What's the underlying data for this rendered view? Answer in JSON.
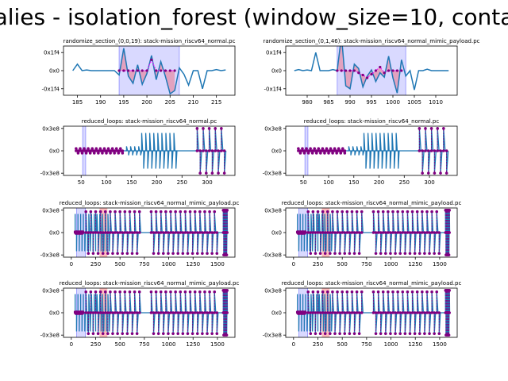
{
  "figure": {
    "suptitle": "alies - isolation_forest (window_size=10, conta"
  },
  "colors": {
    "signal": "#1f77b4",
    "anomaly_points": "#800080",
    "anomaly_line": "#ff00ff",
    "window_fill": "#0000ff",
    "window_fill_alpha": 0.15,
    "diff_fill": "#ff0000",
    "diff_fill_alpha": 0.25
  },
  "chart_data": [
    {
      "type": "line",
      "title": "randomize_section_(0,0,19): stack-mission_riscv64_normal.pc",
      "xlim": [
        182,
        219
      ],
      "ylim": [
        -680,
        680
      ],
      "xticks": [
        185,
        190,
        195,
        200,
        205,
        210,
        215
      ],
      "yticks": [
        {
          "v": 500,
          "label": "0x1f4"
        },
        {
          "v": 0,
          "label": "0x0"
        },
        {
          "v": -500,
          "label": "-0x1f4"
        }
      ],
      "x": [
        184,
        185,
        186,
        187,
        188,
        189,
        190,
        191,
        192,
        193,
        194,
        195,
        196,
        197,
        198,
        199,
        200,
        201,
        202,
        203,
        204,
        205,
        206,
        207,
        208,
        209,
        210,
        211,
        212,
        213,
        214,
        215,
        216,
        217
      ],
      "y": [
        0,
        180,
        0,
        20,
        0,
        0,
        0,
        0,
        0,
        0,
        -120,
        620,
        -150,
        -350,
        160,
        -380,
        -80,
        420,
        -250,
        250,
        -160,
        -640,
        -550,
        80,
        -100,
        -400,
        0,
        0,
        -500,
        0,
        0,
        30,
        0,
        20
      ],
      "window": [
        194,
        207
      ],
      "anomaly_x": [
        194,
        195,
        196,
        197,
        198,
        199,
        200,
        201,
        202,
        203,
        204,
        205,
        206
      ],
      "anomaly_y": [
        0,
        0,
        0,
        0,
        0,
        0,
        0,
        300,
        0,
        0,
        0,
        0,
        0
      ]
    },
    {
      "type": "line",
      "title": "randomize_section_(0,1,46): stack-mission_riscv64_normal_mimic_payload.pc",
      "xlim": [
        975,
        1015
      ],
      "ylim": [
        -680,
        680
      ],
      "xticks": [
        980,
        985,
        990,
        995,
        1000,
        1005,
        1010
      ],
      "yticks": [
        {
          "v": 500,
          "label": "0x1f4"
        },
        {
          "v": 0,
          "label": "0x0"
        },
        {
          "v": -500,
          "label": "-0x1f4"
        }
      ],
      "x": [
        977,
        978,
        979,
        980,
        981,
        982,
        983,
        984,
        985,
        986,
        987,
        988,
        989,
        990,
        991,
        992,
        993,
        994,
        995,
        996,
        997,
        998,
        999,
        1000,
        1001,
        1002,
        1003,
        1004,
        1005,
        1006,
        1007,
        1008,
        1009,
        1010,
        1011,
        1012,
        1013
      ],
      "y": [
        0,
        30,
        0,
        20,
        0,
        500,
        0,
        0,
        0,
        30,
        0,
        960,
        -420,
        -500,
        180,
        60,
        -450,
        -150,
        20,
        -300,
        -60,
        -180,
        400,
        -200,
        -620,
        300,
        -150,
        0,
        -530,
        0,
        0,
        40,
        0,
        0,
        0,
        0,
        0
      ],
      "window": [
        987,
        1003
      ],
      "anomaly_x": [
        987,
        988,
        989,
        990,
        991,
        992,
        993,
        994,
        995,
        996,
        997,
        998,
        999,
        1000,
        1001,
        1002
      ],
      "anomaly_y": [
        0,
        0,
        0,
        0,
        0,
        -60,
        -120,
        -200,
        -100,
        0,
        100,
        -60,
        0,
        0,
        0,
        0
      ]
    },
    {
      "type": "line",
      "title": "reduced_loops: stack-mission_riscv64_normal.pc",
      "xlim": [
        15,
        355
      ],
      "ylim": [
        -330000000,
        330000000
      ],
      "xticks": [
        50,
        100,
        150,
        200,
        250,
        300
      ],
      "yticks": [
        {
          "v": 300000000,
          "label": "0x3e8"
        },
        {
          "v": 0,
          "label": "0x0"
        },
        {
          "v": -300000000,
          "label": "-0x3e8"
        }
      ],
      "window": [
        53,
        59
      ],
      "bursts": [
        {
          "from": 40,
          "to": 135,
          "step": 4,
          "amp": 30000000,
          "markers": true
        },
        {
          "from": 140,
          "to": 168,
          "step": 4,
          "amp": 60000000,
          "markers": false
        },
        {
          "from": 170,
          "to": 238,
          "step": 4,
          "amp": 240000000,
          "markers": false
        },
        {
          "from": 280,
          "to": 336,
          "step": 6,
          "amp": 300000000,
          "markers": true,
          "dashed": true
        }
      ]
    },
    {
      "type": "line",
      "title": "reduced_loops: stack-mission_riscv64_normal.pc",
      "xlim": [
        15,
        355
      ],
      "ylim": [
        -330000000,
        330000000
      ],
      "xticks": [
        50,
        100,
        150,
        200,
        250,
        300
      ],
      "yticks": [
        {
          "v": 300000000,
          "label": "0x3e8"
        },
        {
          "v": 0,
          "label": "0x0"
        },
        {
          "v": -300000000,
          "label": "-0x3e8"
        }
      ],
      "window": [
        53,
        59
      ],
      "bursts": [
        {
          "from": 40,
          "to": 135,
          "step": 4,
          "amp": 30000000,
          "markers": true
        },
        {
          "from": 140,
          "to": 168,
          "step": 4,
          "amp": 60000000,
          "markers": false
        },
        {
          "from": 170,
          "to": 238,
          "step": 4,
          "amp": 240000000,
          "markers": false
        },
        {
          "from": 280,
          "to": 336,
          "step": 6,
          "amp": 300000000,
          "markers": true,
          "dashed": true
        }
      ]
    },
    {
      "type": "line",
      "title": "reduced_loops: stack-mission_riscv64_normal_mimic_payload.pc",
      "xlim": [
        -80,
        1680
      ],
      "ylim": [
        -330000000,
        330000000
      ],
      "xticks": [
        0,
        250,
        500,
        750,
        1000,
        1250,
        1500
      ],
      "yticks": [
        {
          "v": 300000000,
          "label": "0x3e8"
        },
        {
          "v": 0,
          "label": "0x0"
        },
        {
          "v": -300000000,
          "label": "-0x3e8"
        }
      ],
      "window": [
        55,
        145
      ],
      "diff": [
        290,
        370
      ],
      "bursts": [
        {
          "from": 40,
          "to": 400,
          "step": 14,
          "amp": 250000000,
          "markers": false
        },
        {
          "from": 40,
          "to": 120,
          "step": 8,
          "amp": 10000000,
          "markers": true
        },
        {
          "from": 150,
          "to": 700,
          "step": 25,
          "amp": 280000000,
          "markers": true,
          "dashed": true
        },
        {
          "from": 820,
          "to": 1500,
          "step": 25,
          "amp": 280000000,
          "markers": true,
          "dashed": true
        },
        {
          "from": 1560,
          "to": 1600,
          "step": 5,
          "amp": 300000000,
          "markers": true,
          "dashed": true
        }
      ]
    },
    {
      "type": "line",
      "title": "reduced_loops: stack-mission_riscv64_normal_mimic_payload.pc",
      "xlim": [
        -80,
        1680
      ],
      "ylim": [
        -330000000,
        330000000
      ],
      "xticks": [
        0,
        250,
        500,
        750,
        1000,
        1250,
        1500
      ],
      "yticks": [
        {
          "v": 300000000,
          "label": "0x3e8"
        },
        {
          "v": 0,
          "label": "0x0"
        },
        {
          "v": -300000000,
          "label": "-0x3e8"
        }
      ],
      "window": [
        55,
        145
      ],
      "diff": [
        290,
        370
      ],
      "bursts": [
        {
          "from": 40,
          "to": 400,
          "step": 14,
          "amp": 250000000,
          "markers": false
        },
        {
          "from": 40,
          "to": 120,
          "step": 8,
          "amp": 10000000,
          "markers": true
        },
        {
          "from": 150,
          "to": 700,
          "step": 25,
          "amp": 280000000,
          "markers": true,
          "dashed": true
        },
        {
          "from": 820,
          "to": 1500,
          "step": 25,
          "amp": 280000000,
          "markers": true,
          "dashed": true
        },
        {
          "from": 1560,
          "to": 1600,
          "step": 5,
          "amp": 300000000,
          "markers": true,
          "dashed": true
        }
      ]
    },
    {
      "type": "line",
      "title": "reduced_loops: stack-mission_riscv64_normal_mimic_payload.pc",
      "xlim": [
        -80,
        1680
      ],
      "ylim": [
        -330000000,
        330000000
      ],
      "xticks": [
        0,
        250,
        500,
        750,
        1000,
        1250,
        1500
      ],
      "yticks": [
        {
          "v": 300000000,
          "label": "0x3e8"
        },
        {
          "v": 0,
          "label": "0x0"
        },
        {
          "v": -300000000,
          "label": "-0x3e8"
        }
      ],
      "window": [
        55,
        145
      ],
      "diff": [
        290,
        370
      ],
      "bursts": [
        {
          "from": 40,
          "to": 400,
          "step": 14,
          "amp": 250000000,
          "markers": false
        },
        {
          "from": 40,
          "to": 120,
          "step": 8,
          "amp": 10000000,
          "markers": true
        },
        {
          "from": 150,
          "to": 700,
          "step": 25,
          "amp": 280000000,
          "markers": true,
          "dashed": true
        },
        {
          "from": 820,
          "to": 1500,
          "step": 25,
          "amp": 280000000,
          "markers": true,
          "dashed": true
        },
        {
          "from": 1560,
          "to": 1600,
          "step": 5,
          "amp": 300000000,
          "markers": true,
          "dashed": true
        }
      ]
    },
    {
      "type": "line",
      "title": "reduced_loops: stack-mission_riscv64_normal_mimic_payload.pc",
      "xlim": [
        -80,
        1680
      ],
      "ylim": [
        -330000000,
        330000000
      ],
      "xticks": [
        0,
        250,
        500,
        750,
        1000,
        1250,
        1500
      ],
      "yticks": [
        {
          "v": 300000000,
          "label": "0x3e8"
        },
        {
          "v": 0,
          "label": "0x0"
        },
        {
          "v": -300000000,
          "label": "-0x3e8"
        }
      ],
      "window": [
        55,
        145
      ],
      "diff": [
        290,
        370
      ],
      "bursts": [
        {
          "from": 40,
          "to": 400,
          "step": 14,
          "amp": 250000000,
          "markers": false
        },
        {
          "from": 40,
          "to": 120,
          "step": 8,
          "amp": 10000000,
          "markers": true
        },
        {
          "from": 150,
          "to": 700,
          "step": 25,
          "amp": 280000000,
          "markers": true,
          "dashed": true
        },
        {
          "from": 820,
          "to": 1500,
          "step": 25,
          "amp": 280000000,
          "markers": true,
          "dashed": true
        },
        {
          "from": 1560,
          "to": 1600,
          "step": 5,
          "amp": 300000000,
          "markers": true,
          "dashed": true
        }
      ]
    }
  ]
}
